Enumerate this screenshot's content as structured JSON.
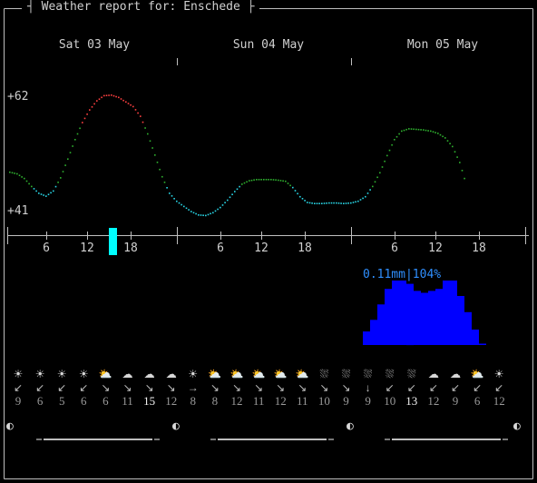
{
  "header": {
    "title": "Weather report for: Enschede"
  },
  "days": [
    "Sat 03 May",
    "Sun 04 May",
    "Mon 05 May"
  ],
  "temperature": {
    "y_labels": {
      "max": "+62",
      "min": "+41"
    },
    "range": [
      41,
      62
    ],
    "points": [
      [
        0,
        48.5
      ],
      [
        1,
        48.2
      ],
      [
        2,
        47.4
      ],
      [
        3,
        46.0
      ],
      [
        4,
        44.8
      ],
      [
        5,
        44.3
      ],
      [
        6,
        45.2
      ],
      [
        7,
        47.5
      ],
      [
        8,
        50.8
      ],
      [
        9,
        54.2
      ],
      [
        10,
        57.2
      ],
      [
        11,
        59.4
      ],
      [
        12,
        61.0
      ],
      [
        13,
        61.9
      ],
      [
        14,
        62.0
      ],
      [
        15,
        61.6
      ],
      [
        16,
        60.8
      ],
      [
        17,
        60.0
      ],
      [
        18,
        58.3
      ],
      [
        19,
        55.2
      ],
      [
        20,
        51.5
      ],
      [
        21,
        47.7
      ],
      [
        22,
        44.8
      ],
      [
        23,
        43.4
      ],
      [
        24,
        42.5
      ],
      [
        25,
        41.6
      ],
      [
        26,
        41.0
      ],
      [
        27,
        40.9
      ],
      [
        28,
        41.4
      ],
      [
        29,
        42.3
      ],
      [
        30,
        43.6
      ],
      [
        31,
        45.1
      ],
      [
        32,
        46.4
      ],
      [
        33,
        47.0
      ],
      [
        34,
        47.2
      ],
      [
        35,
        47.2
      ],
      [
        36,
        47.2
      ],
      [
        37,
        47.1
      ],
      [
        38,
        46.9
      ],
      [
        39,
        45.8
      ],
      [
        40,
        44.2
      ],
      [
        41,
        43.2
      ],
      [
        42,
        43.0
      ],
      [
        43,
        43.0
      ],
      [
        44,
        43.1
      ],
      [
        45,
        43.1
      ],
      [
        46,
        43.0
      ],
      [
        47,
        43.1
      ],
      [
        48,
        43.4
      ],
      [
        49,
        44.2
      ],
      [
        50,
        46.0
      ],
      [
        51,
        48.4
      ],
      [
        52,
        51.4
      ],
      [
        53,
        54.2
      ],
      [
        54,
        55.7
      ],
      [
        55,
        56.1
      ],
      [
        56,
        56.0
      ],
      [
        57,
        55.9
      ],
      [
        58,
        55.7
      ],
      [
        59,
        55.3
      ],
      [
        60,
        54.5
      ],
      [
        61,
        53.0
      ],
      [
        62,
        50.2
      ],
      [
        63,
        46.0
      ]
    ]
  },
  "hours": [
    "6",
    "12",
    "18",
    "6",
    "12",
    "18",
    "6",
    "12",
    "18"
  ],
  "rain": {
    "label": "0.11mm|104%",
    "bars": [
      0,
      0,
      0,
      0,
      0,
      0,
      0,
      0,
      0,
      0,
      0,
      0,
      0,
      0,
      0,
      0,
      0,
      0,
      0,
      0,
      0,
      0,
      0,
      0,
      0,
      0,
      0,
      0,
      0,
      0,
      0,
      0,
      0,
      0,
      0,
      0,
      0,
      0,
      0,
      0,
      0,
      0,
      0,
      0,
      0,
      0,
      0,
      0,
      0,
      0.21,
      0.39,
      0.63,
      0.87,
      1.0,
      1.0,
      0.95,
      0.84,
      0.81,
      0.84,
      0.87,
      1.0,
      1.0,
      0.76,
      0.51,
      0.24,
      0.01
    ]
  },
  "forecast": [
    {
      "icon": "sun",
      "arrow": "↙",
      "speed": "9",
      "hi": false
    },
    {
      "icon": "sun",
      "arrow": "↙",
      "speed": "6",
      "hi": false
    },
    {
      "icon": "sun",
      "arrow": "↙",
      "speed": "5",
      "hi": false
    },
    {
      "icon": "sun",
      "arrow": "↙",
      "speed": "6",
      "hi": false
    },
    {
      "icon": "partly",
      "arrow": "↘",
      "speed": "6",
      "hi": false
    },
    {
      "icon": "cloud",
      "arrow": "↘",
      "speed": "11",
      "hi": false
    },
    {
      "icon": "cloud",
      "arrow": "↘",
      "speed": "15",
      "hi": true
    },
    {
      "icon": "cloud",
      "arrow": "↘",
      "speed": "12",
      "hi": false
    },
    {
      "icon": "sun",
      "arrow": "→",
      "speed": "8",
      "hi": false
    },
    {
      "icon": "partly",
      "arrow": "↘",
      "speed": "8",
      "hi": false
    },
    {
      "icon": "partly",
      "arrow": "↘",
      "speed": "12",
      "hi": false
    },
    {
      "icon": "partly",
      "arrow": "↘",
      "speed": "11",
      "hi": false
    },
    {
      "icon": "partly",
      "arrow": "↘",
      "speed": "12",
      "hi": false
    },
    {
      "icon": "partly",
      "arrow": "↘",
      "speed": "11",
      "hi": false
    },
    {
      "icon": "rain",
      "arrow": "↘",
      "speed": "10",
      "hi": false
    },
    {
      "icon": "rain",
      "arrow": "↘",
      "speed": "9",
      "hi": false
    },
    {
      "icon": "rain",
      "arrow": "↓",
      "speed": "9",
      "hi": false
    },
    {
      "icon": "rain",
      "arrow": "↙",
      "speed": "10",
      "hi": false
    },
    {
      "icon": "rain",
      "arrow": "↙",
      "speed": "13",
      "hi": true
    },
    {
      "icon": "cloud",
      "arrow": "↙",
      "speed": "12",
      "hi": false
    },
    {
      "icon": "cloud",
      "arrow": "↙",
      "speed": "9",
      "hi": false
    },
    {
      "icon": "partly",
      "arrow": "↙",
      "speed": "6",
      "hi": false
    },
    {
      "icon": "sun",
      "arrow": "↙",
      "speed": "12",
      "hi": false
    }
  ],
  "moon_phase": "◐",
  "colors": {
    "cold": "#29d6e6",
    "mild": "#2fb12f",
    "warm": "#ff4040",
    "rain": "#0000ff",
    "rain_label": "#2f8fff",
    "now_marker": "#00ffff"
  }
}
